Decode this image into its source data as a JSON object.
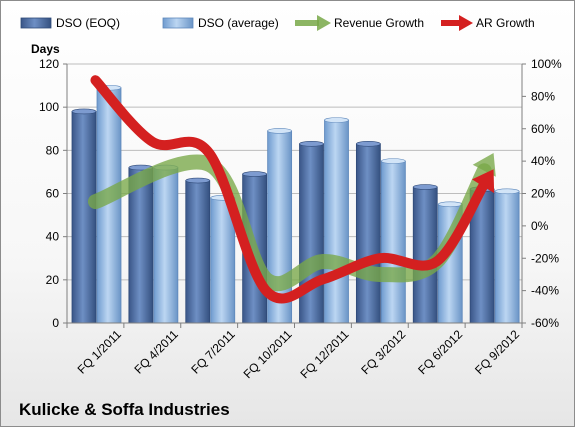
{
  "chart_data": {
    "type": "bar",
    "title": "Kulicke & Soffa Industries",
    "ylabel": "Days",
    "categories": [
      "FQ 1/2011",
      "FQ 4/2011",
      "FQ 7/2011",
      "FQ 10/2011",
      "FQ 12/2011",
      "FQ 3/2012",
      "FQ 6/2012",
      "FQ 9/2012"
    ],
    "series": [
      {
        "name": "DSO (EOQ)",
        "kind": "bar",
        "axis": "left",
        "color": "#4f6fa8",
        "values": [
          98,
          72,
          66,
          69,
          83,
          83,
          63,
          62
        ]
      },
      {
        "name": "DSO (average)",
        "kind": "bar",
        "axis": "left",
        "color": "#8eb6e0",
        "values": [
          109,
          72,
          58,
          89,
          94,
          75,
          55,
          61
        ]
      },
      {
        "name": "Revenue Growth",
        "kind": "line-arrow",
        "axis": "right",
        "color": "#78a848",
        "x": [
          "FQ 1/2011",
          "FQ 7/2011",
          "FQ 10/2011",
          "FQ 12/2011",
          "FQ 3/2012",
          "FQ 6/2012",
          "FQ 9/2012"
        ],
        "values": [
          0.15,
          0.38,
          -0.33,
          -0.22,
          -0.3,
          -0.22,
          0.45
        ]
      },
      {
        "name": "AR Growth",
        "kind": "line-arrow",
        "axis": "right",
        "color": "#d42020",
        "x": [
          "FQ 1/2011",
          "FQ 4/2011",
          "FQ 7/2011",
          "FQ 10/2011",
          "FQ 12/2011",
          "FQ 3/2012",
          "FQ 6/2012",
          "FQ 9/2012"
        ],
        "values": [
          0.9,
          0.52,
          0.45,
          -0.4,
          -0.33,
          -0.2,
          -0.22,
          0.35
        ]
      }
    ],
    "yaxis_left": {
      "min": 0,
      "max": 120,
      "step": 20,
      "tick_labels": [
        "0",
        "20",
        "40",
        "60",
        "80",
        "100",
        "120"
      ]
    },
    "yaxis_right": {
      "min": -0.6,
      "max": 1.0,
      "step": 0.2,
      "tick_labels": [
        "-60%",
        "-40%",
        "-20%",
        "0%",
        "20%",
        "40%",
        "60%",
        "80%",
        "100%"
      ]
    },
    "grid": true,
    "legend_position": "top"
  }
}
